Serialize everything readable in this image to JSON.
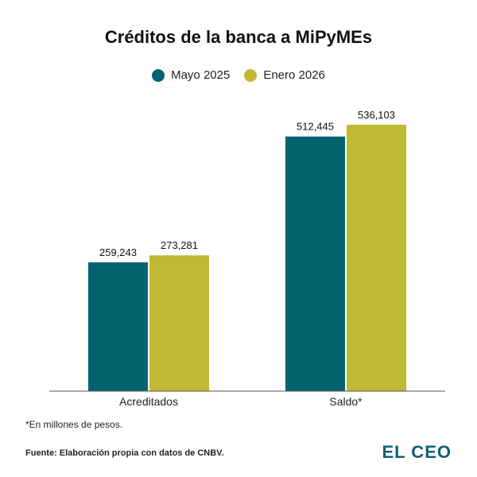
{
  "chart_data": {
    "type": "bar",
    "title": "Créditos de la banca a MiPyMEs",
    "categories": [
      "Acreditados",
      "Saldo*"
    ],
    "series": [
      {
        "name": "Mayo 2025",
        "values": [
          259243,
          512445
        ],
        "labels": [
          "259,243",
          "512,445"
        ],
        "color": "#03646f"
      },
      {
        "name": "Enero 2026",
        "values": [
          273281,
          536103
        ],
        "labels": [
          "273,281",
          "536,103"
        ],
        "color": "#c0b932"
      }
    ],
    "ylim": [
      0,
      600000
    ],
    "grid": false,
    "legend_position": "top-center"
  },
  "note": "*En millones de pesos.",
  "source": "Fuente: Elaboración propia con datos de CNBV.",
  "logo": {
    "text": "EL CEO",
    "color": "#0f5f73"
  }
}
